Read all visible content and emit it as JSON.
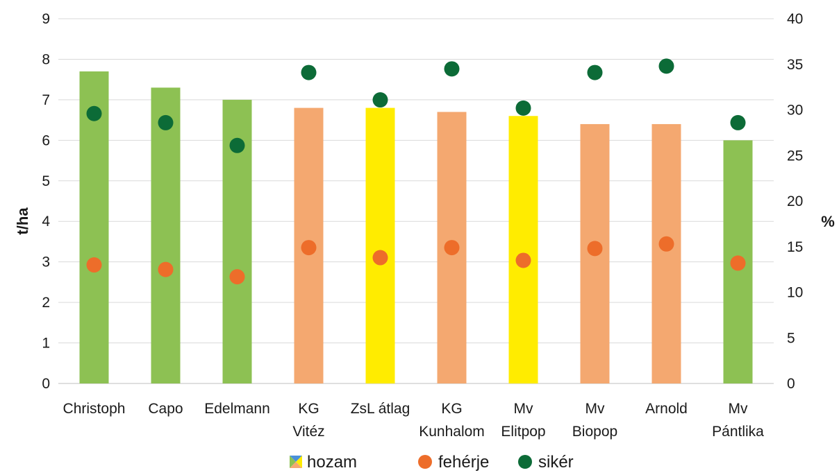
{
  "chart_data": {
    "type": "bar",
    "categories": [
      [
        "Christoph"
      ],
      [
        "Capo"
      ],
      [
        "Edelmann"
      ],
      [
        "KG",
        "Vitéz"
      ],
      [
        "ZsL átlag"
      ],
      [
        "KG",
        "Kunhalom"
      ],
      [
        "Mv",
        "Elitpop"
      ],
      [
        "Mv",
        "Biopop"
      ],
      [
        "Arnold"
      ],
      [
        "Mv",
        "Pántlika"
      ]
    ],
    "series": [
      {
        "name": "hozam",
        "kind": "bar",
        "axis": "left",
        "values": [
          7.7,
          7.3,
          7.0,
          6.8,
          6.8,
          6.7,
          6.6,
          6.4,
          6.4,
          6.0
        ],
        "colors": [
          "#8dc153",
          "#8dc153",
          "#8dc153",
          "#f4a870",
          "#ffec00",
          "#f4a870",
          "#ffec00",
          "#f4a870",
          "#f4a870",
          "#8dc153"
        ]
      },
      {
        "name": "fehérje",
        "kind": "scatter",
        "axis": "right",
        "color": "#ed6d2a",
        "values": [
          13.0,
          12.5,
          11.7,
          14.9,
          13.8,
          14.9,
          13.5,
          14.8,
          15.3,
          13.2
        ]
      },
      {
        "name": "sikér",
        "kind": "scatter",
        "axis": "right",
        "color": "#0c6b37",
        "values": [
          29.6,
          28.6,
          26.1,
          34.1,
          31.1,
          34.5,
          30.2,
          34.1,
          34.8,
          28.6
        ]
      }
    ],
    "ylabel_left": "t/ha",
    "ylabel_right": "%",
    "ylim_left": [
      0,
      9
    ],
    "ylim_right": [
      0,
      40
    ],
    "yticks_left": [
      "0",
      "1",
      "2",
      "3",
      "4",
      "5",
      "6",
      "7",
      "8",
      "9"
    ],
    "yticks_right": [
      "0",
      "5",
      "10",
      "15",
      "20",
      "25",
      "30",
      "35",
      "40"
    ],
    "grid": true,
    "legend_position": "bottom",
    "legend_hozam_colors": [
      "#8dc153",
      "#ffec00",
      "#f4a870",
      "#4a90d9"
    ]
  }
}
